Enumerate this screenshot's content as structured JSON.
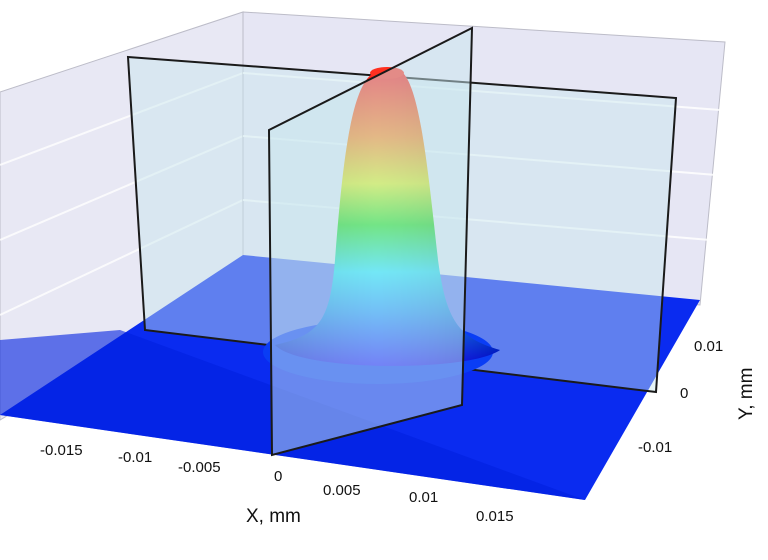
{
  "chart_data": {
    "type": "surface3d",
    "title": "",
    "xlabel": "X, mm",
    "ylabel": "Y, mm",
    "zlabel": "",
    "x_ticks": [
      "-0.015",
      "-0.01",
      "-0.005",
      "0",
      "0.005",
      "0.01",
      "0.015"
    ],
    "y_ticks": [
      "0.01",
      "0",
      "-0.01"
    ],
    "xlim": [
      -0.02,
      0.02
    ],
    "ylim": [
      -0.015,
      0.015
    ],
    "z_relative_range": [
      0,
      1
    ],
    "surface": {
      "shape": "gaussian-like peak (flat top)",
      "center": [
        0,
        0
      ],
      "peak_relative_height": 1,
      "half_width_mm": 0.004
    },
    "cut_planes": [
      {
        "name": "plane-x0",
        "orientation": "x = 0"
      },
      {
        "name": "plane-y0",
        "orientation": "y = 0"
      }
    ],
    "colormap": [
      "#0000ff",
      "#00e5ff",
      "#00e000",
      "#f0f000",
      "#ff7a00",
      "#ff0000"
    ],
    "floor_color": "#0a2bf0",
    "grid": true
  }
}
